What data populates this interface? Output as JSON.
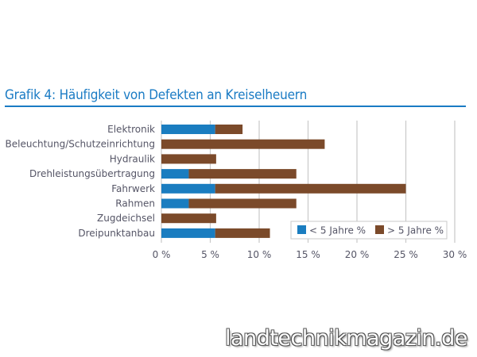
{
  "chart_data": {
    "type": "bar",
    "orientation": "horizontal",
    "stacked": true,
    "title": "Grafik 4: Häufigkeit von Defekten an Kreiselheuern",
    "xlabel": "",
    "ylabel": "",
    "categories": [
      "Elektronik",
      "Beleuchtung/Schutzeinrichtung",
      "Hydraulik",
      "Drehleistungsübertragung",
      "Fahrwerk",
      "Rahmen",
      "Zugdeichsel",
      "Dreipunktanbau"
    ],
    "series": [
      {
        "name": "< 5 Jahre %",
        "color": "#1a7dc0",
        "values": [
          5.5,
          0,
          0,
          2.8,
          5.5,
          2.8,
          0,
          5.5
        ]
      },
      {
        "name": "> 5 Jahre %",
        "color": "#7b4a2a",
        "values": [
          2.8,
          16.7,
          5.6,
          11.0,
          19.5,
          11.0,
          5.6,
          5.6
        ]
      }
    ],
    "xlim": [
      0,
      30
    ],
    "xticks": [
      0,
      5,
      10,
      15,
      20,
      25,
      30
    ],
    "xtick_labels": [
      "0 %",
      "5 %",
      "10 %",
      "15 %",
      "20 %",
      "25 %",
      "30 %"
    ],
    "grid": true,
    "legend_position": "bottom-right"
  },
  "watermark": "landtechnikmagazin.de"
}
